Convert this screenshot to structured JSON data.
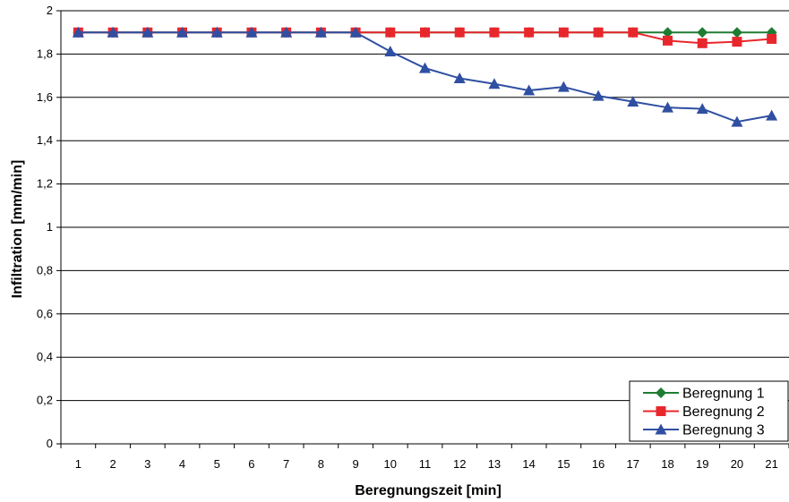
{
  "chart_data": {
    "type": "line",
    "title": "",
    "xlabel": "Beregnungszeit [min]",
    "ylabel": "Infiltration [mm/min]",
    "categories": [
      "1",
      "2",
      "3",
      "4",
      "5",
      "6",
      "7",
      "8",
      "9",
      "10",
      "11",
      "12",
      "13",
      "14",
      "15",
      "16",
      "17",
      "18",
      "19",
      "20",
      "21"
    ],
    "ylim": [
      0,
      2
    ],
    "yticks": [
      "0",
      "0,2",
      "0,4",
      "0,6",
      "0,8",
      "1",
      "1,2",
      "1,4",
      "1,6",
      "1,8",
      "2"
    ],
    "grid": true,
    "legend_position": "bottom-right",
    "series": [
      {
        "name": "Beregnung 1",
        "color": "#1e7d32",
        "marker": "diamond",
        "values": [
          1.9,
          1.9,
          1.9,
          1.9,
          1.9,
          1.9,
          1.9,
          1.9,
          1.9,
          1.9,
          1.9,
          1.9,
          1.9,
          1.9,
          1.9,
          1.9,
          1.9,
          1.9,
          1.9,
          1.9,
          1.9
        ]
      },
      {
        "name": "Beregnung 2",
        "color": "#e8272d",
        "marker": "square",
        "values": [
          1.9,
          1.9,
          1.9,
          1.9,
          1.9,
          1.9,
          1.9,
          1.9,
          1.9,
          1.9,
          1.9,
          1.9,
          1.9,
          1.9,
          1.9,
          1.9,
          1.9,
          1.862,
          1.85,
          1.857,
          1.87
        ]
      },
      {
        "name": "Beregnung 3",
        "color": "#2f4fa2",
        "marker": "triangle",
        "values": [
          1.9,
          1.9,
          1.9,
          1.9,
          1.9,
          1.9,
          1.9,
          1.9,
          1.9,
          1.812,
          1.735,
          1.688,
          1.662,
          1.632,
          1.648,
          1.607,
          1.58,
          1.553,
          1.547,
          1.487,
          1.516
        ]
      }
    ]
  }
}
